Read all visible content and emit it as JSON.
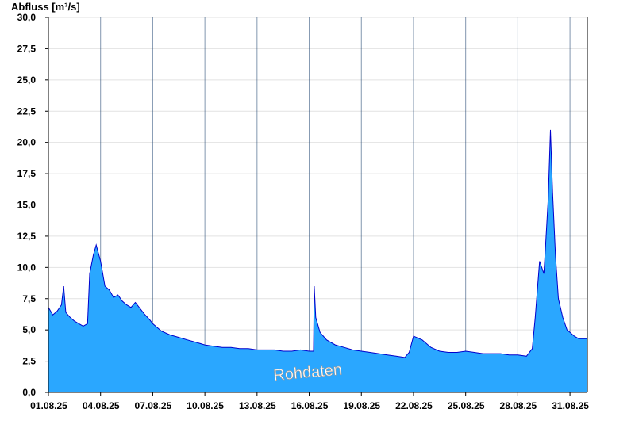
{
  "chart_data": {
    "type": "area",
    "ylabel": "Abfluss [m³/s]",
    "watermark": "Rohdaten",
    "ylim": [
      0,
      30
    ],
    "yticks": [
      "0,0",
      "2,5",
      "5,0",
      "7,5",
      "10,0",
      "12,5",
      "15,0",
      "17,5",
      "20,0",
      "22,5",
      "25,0",
      "27,5",
      "30,0"
    ],
    "xlim": [
      "2025-08-01",
      "2025-09-01"
    ],
    "xticks": [
      {
        "date": "2025-08-01",
        "label": "01.08.25"
      },
      {
        "date": "2025-08-04",
        "label": "04.08.25"
      },
      {
        "date": "2025-08-07",
        "label": "07.08.25"
      },
      {
        "date": "2025-08-10",
        "label": "10.08.25"
      },
      {
        "date": "2025-08-13",
        "label": "13.08.25"
      },
      {
        "date": "2025-08-16",
        "label": "16.08.25"
      },
      {
        "date": "2025-08-19",
        "label": "19.08.25"
      },
      {
        "date": "2025-08-22",
        "label": "22.08.25"
      },
      {
        "date": "2025-08-25",
        "label": "25.08.25"
      },
      {
        "date": "2025-08-28",
        "label": "28.08.25"
      },
      {
        "date": "2025-08-31",
        "label": "31.08.25"
      }
    ],
    "fill_color": "#2aa7ff",
    "line_color": "#0000cc",
    "grid_color": "#e2e2e2",
    "series": [
      {
        "x": [
          "2025-08-01 00:00",
          "2025-08-01 06:00",
          "2025-08-01 12:00",
          "2025-08-01 18:00",
          "2025-08-01 21:00",
          "2025-08-02 00:00",
          "2025-08-02 06:00",
          "2025-08-02 12:00",
          "2025-08-02 18:00",
          "2025-08-03 00:00",
          "2025-08-03 06:00",
          "2025-08-03 09:00",
          "2025-08-03 14:00",
          "2025-08-03 18:00",
          "2025-08-04 00:00",
          "2025-08-04 06:00",
          "2025-08-04 12:00",
          "2025-08-04 18:00",
          "2025-08-05 00:00",
          "2025-08-05 06:00",
          "2025-08-05 12:00",
          "2025-08-05 18:00",
          "2025-08-06 00:00",
          "2025-08-06 12:00",
          "2025-08-06 20:00",
          "2025-08-07 00:00",
          "2025-08-07 12:00",
          "2025-08-08 00:00",
          "2025-08-08 12:00",
          "2025-08-09 00:00",
          "2025-08-09 12:00",
          "2025-08-10 00:00",
          "2025-08-10 12:00",
          "2025-08-11 00:00",
          "2025-08-11 12:00",
          "2025-08-12 00:00",
          "2025-08-12 12:00",
          "2025-08-13 00:00",
          "2025-08-13 12:00",
          "2025-08-14 00:00",
          "2025-08-14 12:00",
          "2025-08-15 00:00",
          "2025-08-15 12:00",
          "2025-08-16 00:00",
          "2025-08-16 06:00",
          "2025-08-16 07:00",
          "2025-08-16 09:00",
          "2025-08-16 15:00",
          "2025-08-17 00:00",
          "2025-08-17 12:00",
          "2025-08-18 00:00",
          "2025-08-18 12:00",
          "2025-08-19 00:00",
          "2025-08-19 12:00",
          "2025-08-20 00:00",
          "2025-08-20 12:00",
          "2025-08-21 00:00",
          "2025-08-21 12:00",
          "2025-08-21 18:00",
          "2025-08-22 00:00",
          "2025-08-22 12:00",
          "2025-08-23 00:00",
          "2025-08-23 12:00",
          "2025-08-24 00:00",
          "2025-08-24 12:00",
          "2025-08-25 00:00",
          "2025-08-25 12:00",
          "2025-08-26 00:00",
          "2025-08-26 12:00",
          "2025-08-27 00:00",
          "2025-08-27 12:00",
          "2025-08-28 00:00",
          "2025-08-28 12:00",
          "2025-08-28 20:00",
          "2025-08-29 00:00",
          "2025-08-29 06:00",
          "2025-08-29 12:00",
          "2025-08-29 14:00",
          "2025-08-29 18:00",
          "2025-08-29 21:00",
          "2025-08-30 00:00",
          "2025-08-30 04:00",
          "2025-08-30 08:00",
          "2025-08-30 14:00",
          "2025-08-30 20:00",
          "2025-08-31 00:00",
          "2025-08-31 06:00",
          "2025-08-31 12:00",
          "2025-08-31 18:00",
          "2025-09-01 00:00"
        ],
        "y": [
          6.8,
          6.2,
          6.5,
          7.0,
          8.5,
          6.4,
          6.0,
          5.7,
          5.5,
          5.3,
          5.5,
          9.5,
          11.0,
          11.8,
          10.5,
          8.5,
          8.2,
          7.6,
          7.8,
          7.3,
          7.0,
          6.8,
          7.2,
          6.3,
          5.8,
          5.5,
          4.9,
          4.6,
          4.4,
          4.2,
          4.0,
          3.8,
          3.7,
          3.6,
          3.6,
          3.5,
          3.5,
          3.4,
          3.4,
          3.4,
          3.3,
          3.3,
          3.4,
          3.3,
          3.3,
          8.5,
          6.0,
          4.8,
          4.2,
          3.8,
          3.6,
          3.4,
          3.3,
          3.2,
          3.1,
          3.0,
          2.9,
          2.8,
          3.2,
          4.5,
          4.2,
          3.6,
          3.3,
          3.2,
          3.2,
          3.3,
          3.2,
          3.1,
          3.1,
          3.1,
          3.0,
          3.0,
          2.9,
          3.5,
          6.0,
          10.5,
          9.5,
          11.5,
          15.5,
          21.0,
          16.0,
          11.0,
          7.5,
          6.0,
          5.0,
          4.8,
          4.5,
          4.3,
          4.3,
          4.3
        ]
      }
    ]
  }
}
